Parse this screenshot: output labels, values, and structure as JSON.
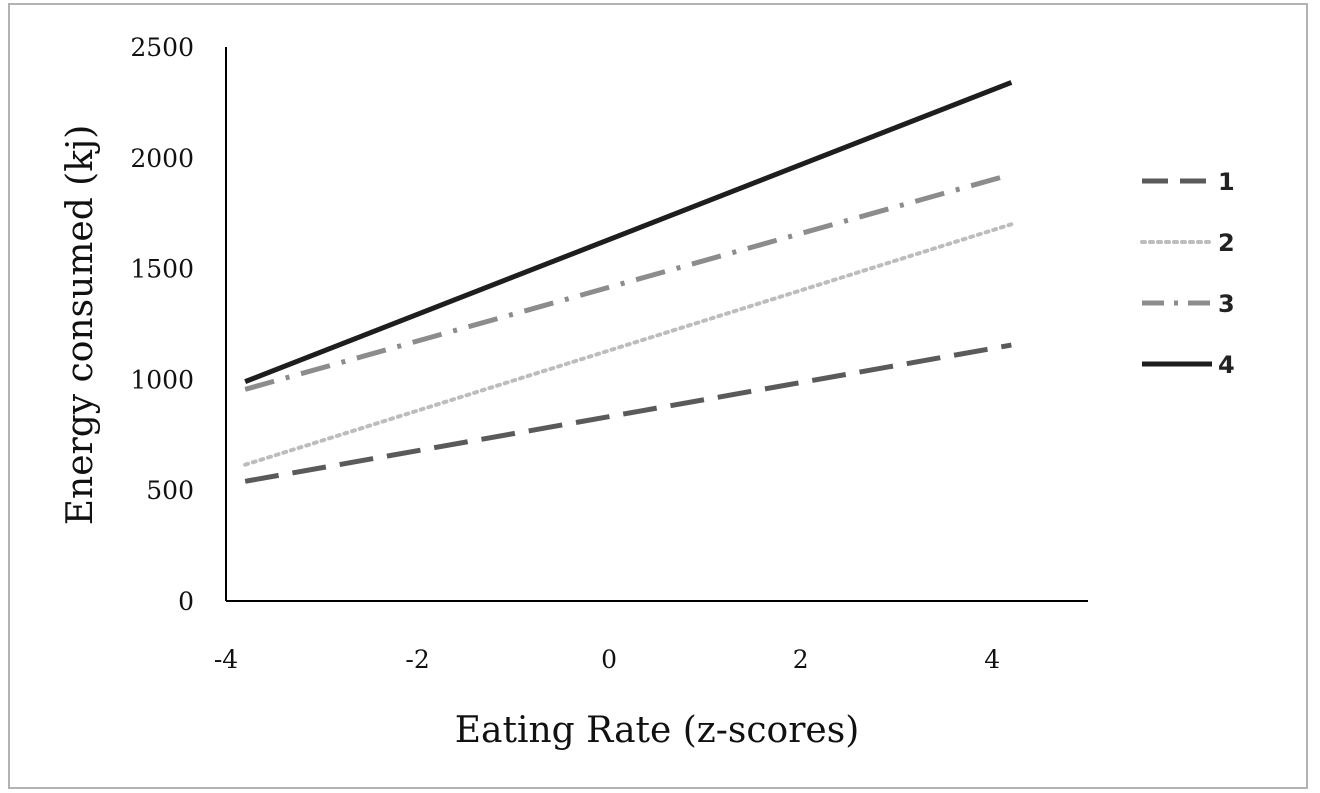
{
  "chart_data": {
    "type": "line",
    "title": "",
    "xlabel": "Eating Rate (z-scores)",
    "ylabel": "Energy consumed (kj)",
    "xlim": [
      -4,
      5
    ],
    "ylim": [
      0,
      2500
    ],
    "x_ticks": [
      "-4",
      "-2",
      "0",
      "2",
      "4"
    ],
    "y_ticks": [
      "0",
      "500",
      "1000",
      "1500",
      "2000",
      "2500"
    ],
    "grid": false,
    "legend_position": "right",
    "series": [
      {
        "name": "1",
        "x": [
          -3.8,
          4.2
        ],
        "y": [
          540,
          1155
        ],
        "color": "#5a5a5a",
        "dash": "long-dash"
      },
      {
        "name": "2",
        "x": [
          -3.8,
          4.2
        ],
        "y": [
          615,
          1700
        ],
        "color": "#bdbdbd",
        "dash": "dotted"
      },
      {
        "name": "3",
        "x": [
          -3.8,
          4.2
        ],
        "y": [
          955,
          1925
        ],
        "color": "#8c8c8c",
        "dash": "dash-dot"
      },
      {
        "name": "4",
        "x": [
          -3.8,
          4.2
        ],
        "y": [
          990,
          2340
        ],
        "color": "#1e1e1e",
        "dash": "solid"
      }
    ]
  }
}
